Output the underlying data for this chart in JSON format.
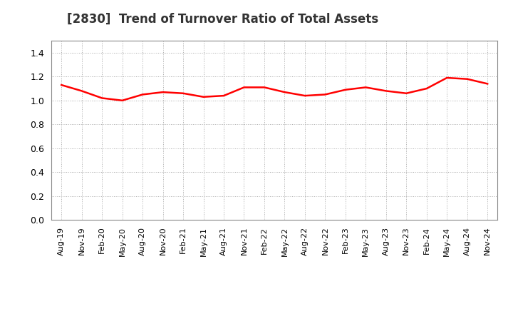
{
  "title": "[2830]  Trend of Turnover Ratio of Total Assets",
  "line_color": "#FF0000",
  "line_width": 1.8,
  "background_color": "#FFFFFF",
  "grid_color": "#AAAAAA",
  "ylim": [
    0.0,
    1.5
  ],
  "yticks": [
    0.0,
    0.2,
    0.4,
    0.6,
    0.8,
    1.0,
    1.2,
    1.4
  ],
  "x_labels": [
    "Aug-19",
    "Nov-19",
    "Feb-20",
    "May-20",
    "Aug-20",
    "Nov-20",
    "Feb-21",
    "May-21",
    "Aug-21",
    "Nov-21",
    "Feb-22",
    "May-22",
    "Aug-22",
    "Nov-22",
    "Feb-23",
    "May-23",
    "Aug-23",
    "Nov-23",
    "Feb-24",
    "May-24",
    "Aug-24",
    "Nov-24"
  ],
  "values": [
    1.13,
    1.08,
    1.02,
    1.0,
    1.05,
    1.07,
    1.06,
    1.03,
    1.04,
    1.11,
    1.11,
    1.07,
    1.04,
    1.05,
    1.09,
    1.11,
    1.08,
    1.06,
    1.1,
    1.19,
    1.18,
    1.14
  ],
  "title_fontsize": 12,
  "tick_fontsize": 8,
  "ytick_fontsize": 9
}
